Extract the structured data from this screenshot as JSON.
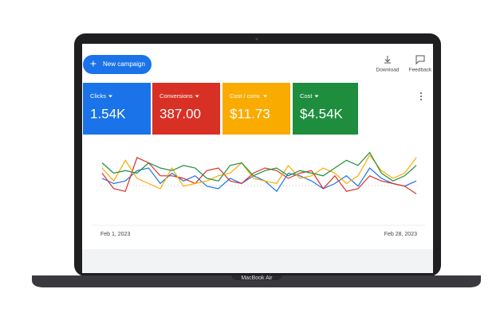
{
  "header": {
    "button": "New campaign",
    "actions": [
      "Download",
      "Feedback"
    ]
  },
  "cards": [
    {
      "label": "Clicks",
      "value": "1.54K",
      "color": "#1a73e8"
    },
    {
      "label": "Conversions",
      "value": "387.00",
      "color": "#d93025"
    },
    {
      "label": "Cost / conv.",
      "value": "$11.73",
      "color": "#f9ab00"
    },
    {
      "label": "Cost",
      "value": "$4.54K",
      "color": "#1e8e3e"
    }
  ],
  "chart_data": {
    "type": "line",
    "x_labels": [
      "Feb 1, 2023",
      "Feb 28, 2023"
    ],
    "ylim": [
      0,
      100
    ],
    "series": [
      {
        "color": "#1a73e8",
        "values": [
          40,
          30,
          35,
          55,
          60,
          30,
          50,
          35,
          45,
          25,
          20,
          40,
          30,
          45,
          35,
          15,
          50,
          45,
          35,
          20,
          30,
          45,
          25,
          60,
          40,
          30,
          25,
          35
        ]
      },
      {
        "color": "#d93025",
        "values": [
          50,
          20,
          15,
          80,
          70,
          45,
          45,
          40,
          30,
          55,
          60,
          35,
          30,
          50,
          60,
          55,
          40,
          50,
          55,
          20,
          45,
          15,
          20,
          45,
          35,
          30,
          25,
          10
        ]
      },
      {
        "color": "#f9ab00",
        "values": [
          60,
          35,
          75,
          40,
          30,
          20,
          60,
          25,
          30,
          35,
          45,
          50,
          70,
          40,
          35,
          30,
          65,
          40,
          45,
          60,
          50,
          30,
          45,
          85,
          55,
          40,
          50,
          80
        ]
      },
      {
        "color": "#1e8e3e",
        "values": [
          70,
          50,
          55,
          50,
          70,
          60,
          55,
          65,
          60,
          40,
          35,
          65,
          70,
          45,
          55,
          60,
          45,
          55,
          50,
          45,
          60,
          75,
          65,
          90,
          50,
          35,
          45,
          65
        ]
      }
    ]
  },
  "device": "MacBook Air"
}
